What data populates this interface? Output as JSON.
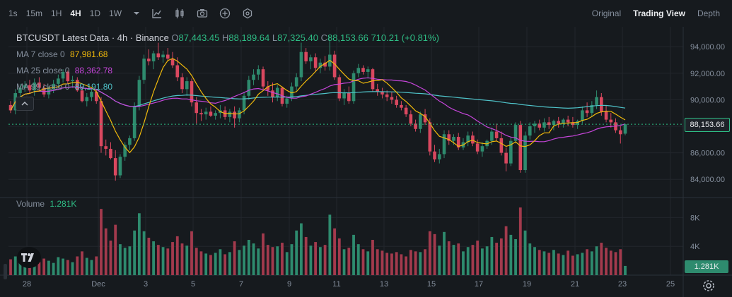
{
  "toolbar": {
    "timeframes": [
      "1s",
      "15m",
      "1H",
      "4H",
      "1D",
      "1W"
    ],
    "active_timeframe": "4H",
    "views": [
      "Original",
      "Trading View",
      "Depth"
    ],
    "active_view": "Trading View"
  },
  "legend": {
    "title": "BTCUSDT Latest Data · 4h · Binance",
    "ohlc": {
      "o_label": "O",
      "o": "87,443.45",
      "h_label": "H",
      "h": "88,189.64",
      "l_label": "L",
      "l": "87,325.40",
      "c_label": "C",
      "c": "88,153.66",
      "change": "710.21 (+0.81%)"
    },
    "ma7": {
      "label": "MA 7 close 0",
      "value": "87,981.68"
    },
    "ma25": {
      "label": "MA 25 close 0",
      "value": "88,362.78"
    },
    "ma99": {
      "label": "MA 99 close 0",
      "value": "89,191.80"
    },
    "volume": {
      "label": "Volume",
      "value": "1.281K"
    }
  },
  "price_tag": "88,153.66",
  "volume_tag": "1.281K",
  "colors": {
    "up": "#2e8b6e",
    "down": "#d9485f",
    "ma7": "#f0b90b",
    "ma25": "#c545d9",
    "ma99": "#4fc3c9",
    "volume_up": "#2e8b6e",
    "volume_down": "#a33a4d"
  },
  "chart_data": {
    "type": "candlestick",
    "x_ticks": [
      "28",
      "Dec",
      "3",
      "5",
      "7",
      "9",
      "11",
      "13",
      "15",
      "17",
      "19",
      "21",
      "23",
      "25"
    ],
    "price_axis": {
      "ticks": [
        "94,000.00",
        "92,000.00",
        "90,000.00",
        "86,000.00",
        "84,000.00"
      ],
      "tick_values": [
        94000,
        92000,
        90000,
        86000,
        84000
      ],
      "range": [
        83000,
        95500
      ]
    },
    "volume_axis": {
      "ticks": [
        "8K",
        "4K"
      ],
      "tick_values": [
        8000,
        4000
      ],
      "range": [
        0,
        10000
      ]
    },
    "last_price": 88153.66,
    "candles": [
      [
        89600,
        89900,
        89000,
        89200
      ],
      [
        89200,
        90800,
        88900,
        90500
      ],
      [
        90500,
        91200,
        90100,
        90900
      ],
      [
        90900,
        91400,
        90600,
        91100
      ],
      [
        91100,
        91500,
        90500,
        90700
      ],
      [
        90700,
        91600,
        90300,
        91300
      ],
      [
        91300,
        91700,
        90700,
        90900
      ],
      [
        90900,
        91200,
        90200,
        90400
      ],
      [
        90400,
        91000,
        90100,
        90800
      ],
      [
        90800,
        91500,
        90500,
        91200
      ],
      [
        91200,
        91900,
        90900,
        91600
      ],
      [
        91600,
        92300,
        91300,
        92100
      ],
      [
        92100,
        92200,
        91200,
        91400
      ],
      [
        91400,
        91800,
        90900,
        91500
      ],
      [
        91500,
        91700,
        90600,
        90700
      ],
      [
        90700,
        91000,
        89800,
        89900
      ],
      [
        89900,
        90500,
        89500,
        90200
      ],
      [
        90200,
        90900,
        89900,
        90600
      ],
      [
        90600,
        90800,
        89700,
        89900
      ],
      [
        89900,
        90200,
        86000,
        86500
      ],
      [
        86500,
        87000,
        85800,
        86300
      ],
      [
        86300,
        86800,
        85500,
        85600
      ],
      [
        85600,
        86200,
        83900,
        84300
      ],
      [
        84300,
        85900,
        84100,
        85700
      ],
      [
        85700,
        86800,
        85400,
        86600
      ],
      [
        86600,
        87300,
        86200,
        87100
      ],
      [
        87100,
        89800,
        86900,
        89500
      ],
      [
        89500,
        91800,
        89200,
        91500
      ],
      [
        91500,
        93400,
        91200,
        93100
      ],
      [
        93100,
        93800,
        92600,
        92900
      ],
      [
        92900,
        93700,
        92300,
        93500
      ],
      [
        93500,
        94300,
        93000,
        93200
      ],
      [
        93200,
        93700,
        92800,
        93400
      ],
      [
        93400,
        93900,
        92900,
        93100
      ],
      [
        93100,
        93600,
        92400,
        92600
      ],
      [
        92600,
        93200,
        91400,
        91700
      ],
      [
        91700,
        92000,
        90500,
        90800
      ],
      [
        90800,
        91700,
        90300,
        91400
      ],
      [
        91400,
        91600,
        89500,
        89800
      ],
      [
        89800,
        90200,
        88200,
        89000
      ],
      [
        89000,
        89300,
        88400,
        88900
      ],
      [
        88900,
        89400,
        88500,
        89100
      ],
      [
        89100,
        89500,
        88700,
        88800
      ],
      [
        88800,
        89200,
        88500,
        89000
      ],
      [
        89000,
        89600,
        88600,
        89200
      ],
      [
        89200,
        89500,
        88500,
        88700
      ],
      [
        88700,
        89300,
        88300,
        89100
      ],
      [
        89100,
        89500,
        87900,
        88600
      ],
      [
        88600,
        89400,
        88300,
        89200
      ],
      [
        89200,
        90600,
        88900,
        90300
      ],
      [
        90300,
        91800,
        90000,
        91500
      ],
      [
        91500,
        92300,
        91100,
        91900
      ],
      [
        91900,
        92600,
        91500,
        92300
      ],
      [
        92300,
        92500,
        90800,
        91000
      ],
      [
        91000,
        91400,
        90300,
        90700
      ],
      [
        90700,
        91300,
        89800,
        90200
      ],
      [
        90200,
        91100,
        89900,
        90900
      ],
      [
        90900,
        91000,
        89500,
        89700
      ],
      [
        89700,
        90300,
        89400,
        90100
      ],
      [
        90100,
        91300,
        89900,
        91000
      ],
      [
        91000,
        92000,
        90700,
        91700
      ],
      [
        91700,
        94300,
        91400,
        93600
      ],
      [
        93600,
        93900,
        92700,
        92900
      ],
      [
        92900,
        93400,
        92300,
        93200
      ],
      [
        93200,
        93500,
        92100,
        92400
      ],
      [
        92400,
        93100,
        92000,
        92800
      ],
      [
        92800,
        93300,
        92200,
        92500
      ],
      [
        92500,
        94800,
        92200,
        93400
      ],
      [
        93400,
        93700,
        91500,
        91700
      ],
      [
        91700,
        91900,
        89900,
        90100
      ],
      [
        90100,
        90800,
        89600,
        90500
      ],
      [
        90500,
        91000,
        89700,
        89900
      ],
      [
        89900,
        92200,
        89700,
        92000
      ],
      [
        92000,
        92700,
        91700,
        92400
      ],
      [
        92400,
        92600,
        91900,
        92100
      ],
      [
        92100,
        92500,
        91600,
        92300
      ],
      [
        92300,
        92400,
        90600,
        90800
      ],
      [
        90800,
        91200,
        90300,
        90600
      ],
      [
        90600,
        90900,
        90100,
        90400
      ],
      [
        90400,
        90700,
        89900,
        90200
      ],
      [
        90200,
        90600,
        89700,
        90000
      ],
      [
        90000,
        90300,
        89400,
        89600
      ],
      [
        89600,
        89900,
        89200,
        89400
      ],
      [
        89400,
        89600,
        88700,
        88900
      ],
      [
        88900,
        89200,
        88000,
        88200
      ],
      [
        88200,
        88500,
        87600,
        87800
      ],
      [
        87800,
        89100,
        87500,
        88900
      ],
      [
        88900,
        89300,
        88100,
        88300
      ],
      [
        88300,
        88600,
        85800,
        86100
      ],
      [
        86100,
        86600,
        85300,
        85500
      ],
      [
        85500,
        86300,
        85200,
        85900
      ],
      [
        85900,
        87700,
        85600,
        87400
      ],
      [
        87400,
        87700,
        86600,
        86900
      ],
      [
        86900,
        87400,
        86600,
        87200
      ],
      [
        87200,
        87500,
        86200,
        86400
      ],
      [
        86400,
        87100,
        86200,
        86800
      ],
      [
        86800,
        87600,
        86500,
        87300
      ],
      [
        87300,
        87600,
        86500,
        86700
      ],
      [
        86700,
        87000,
        85900,
        86100
      ],
      [
        86100,
        86800,
        85700,
        86500
      ],
      [
        86500,
        87000,
        86300,
        86900
      ],
      [
        86900,
        87900,
        86600,
        87600
      ],
      [
        87600,
        88200,
        86900,
        87100
      ],
      [
        87100,
        87600,
        85800,
        86000
      ],
      [
        86000,
        86400,
        84600,
        85200
      ],
      [
        85200,
        87200,
        85000,
        86900
      ],
      [
        86900,
        88300,
        86700,
        88100
      ],
      [
        88100,
        88400,
        84500,
        84700
      ],
      [
        84700,
        87600,
        84500,
        87300
      ],
      [
        87300,
        88300,
        87000,
        88000
      ],
      [
        88000,
        88400,
        87500,
        88200
      ],
      [
        88200,
        88500,
        87700,
        87900
      ],
      [
        87900,
        88600,
        87600,
        88300
      ],
      [
        88300,
        88700,
        87800,
        88100
      ],
      [
        88100,
        88500,
        87700,
        88400
      ],
      [
        88400,
        88700,
        87900,
        88200
      ],
      [
        88200,
        88600,
        87900,
        88500
      ],
      [
        88500,
        88800,
        88000,
        88300
      ],
      [
        88300,
        88700,
        87900,
        88100
      ],
      [
        88100,
        88500,
        87800,
        88400
      ],
      [
        88400,
        89500,
        88200,
        89200
      ],
      [
        89200,
        89800,
        88700,
        89000
      ],
      [
        89000,
        89900,
        88700,
        89600
      ],
      [
        89600,
        90700,
        89300,
        90200
      ],
      [
        90200,
        90500,
        88800,
        89100
      ],
      [
        89100,
        89600,
        88300,
        88500
      ],
      [
        88500,
        89000,
        87900,
        88300
      ],
      [
        88300,
        88600,
        87500,
        87700
      ],
      [
        87700,
        88000,
        86700,
        87400
      ],
      [
        87443,
        88190,
        87325,
        88154
      ]
    ],
    "volumes": [
      2200,
      2600,
      1900,
      2100,
      2400,
      2000,
      1800,
      2300,
      2000,
      1700,
      2500,
      2300,
      2100,
      1800,
      2600,
      3300,
      2400,
      2100,
      2600,
      9200,
      6500,
      4800,
      7000,
      4300,
      3800,
      4000,
      6200,
      8600,
      6100,
      5200,
      4700,
      4200,
      3900,
      3700,
      4600,
      5400,
      4400,
      4100,
      6100,
      3800,
      3300,
      3000,
      2800,
      3100,
      3600,
      2900,
      3200,
      4700,
      3500,
      4100,
      4900,
      4400,
      3700,
      5800,
      4200,
      3900,
      4000,
      4500,
      3200,
      4300,
      6200,
      7200,
      5300,
      4100,
      4600,
      3900,
      4200,
      8400,
      6500,
      5100,
      3600,
      3800,
      5600,
      4300,
      3600,
      3300,
      4900,
      3600,
      3400,
      3100,
      3000,
      3200,
      2900,
      2600,
      3500,
      3300,
      3200,
      3600,
      6100,
      5700,
      4100,
      6000,
      4700,
      4200,
      4400,
      3300,
      3900,
      4200,
      4800,
      3700,
      4000,
      5300,
      4500,
      5100,
      6800,
      5600,
      5000,
      9400,
      6200,
      4400,
      3900,
      3500,
      3300,
      3100,
      3500,
      3000,
      2800,
      3400,
      2700,
      2900,
      3100,
      3600,
      3300,
      4000,
      4500,
      3800,
      3400,
      3200,
      3600,
      1281
    ]
  }
}
